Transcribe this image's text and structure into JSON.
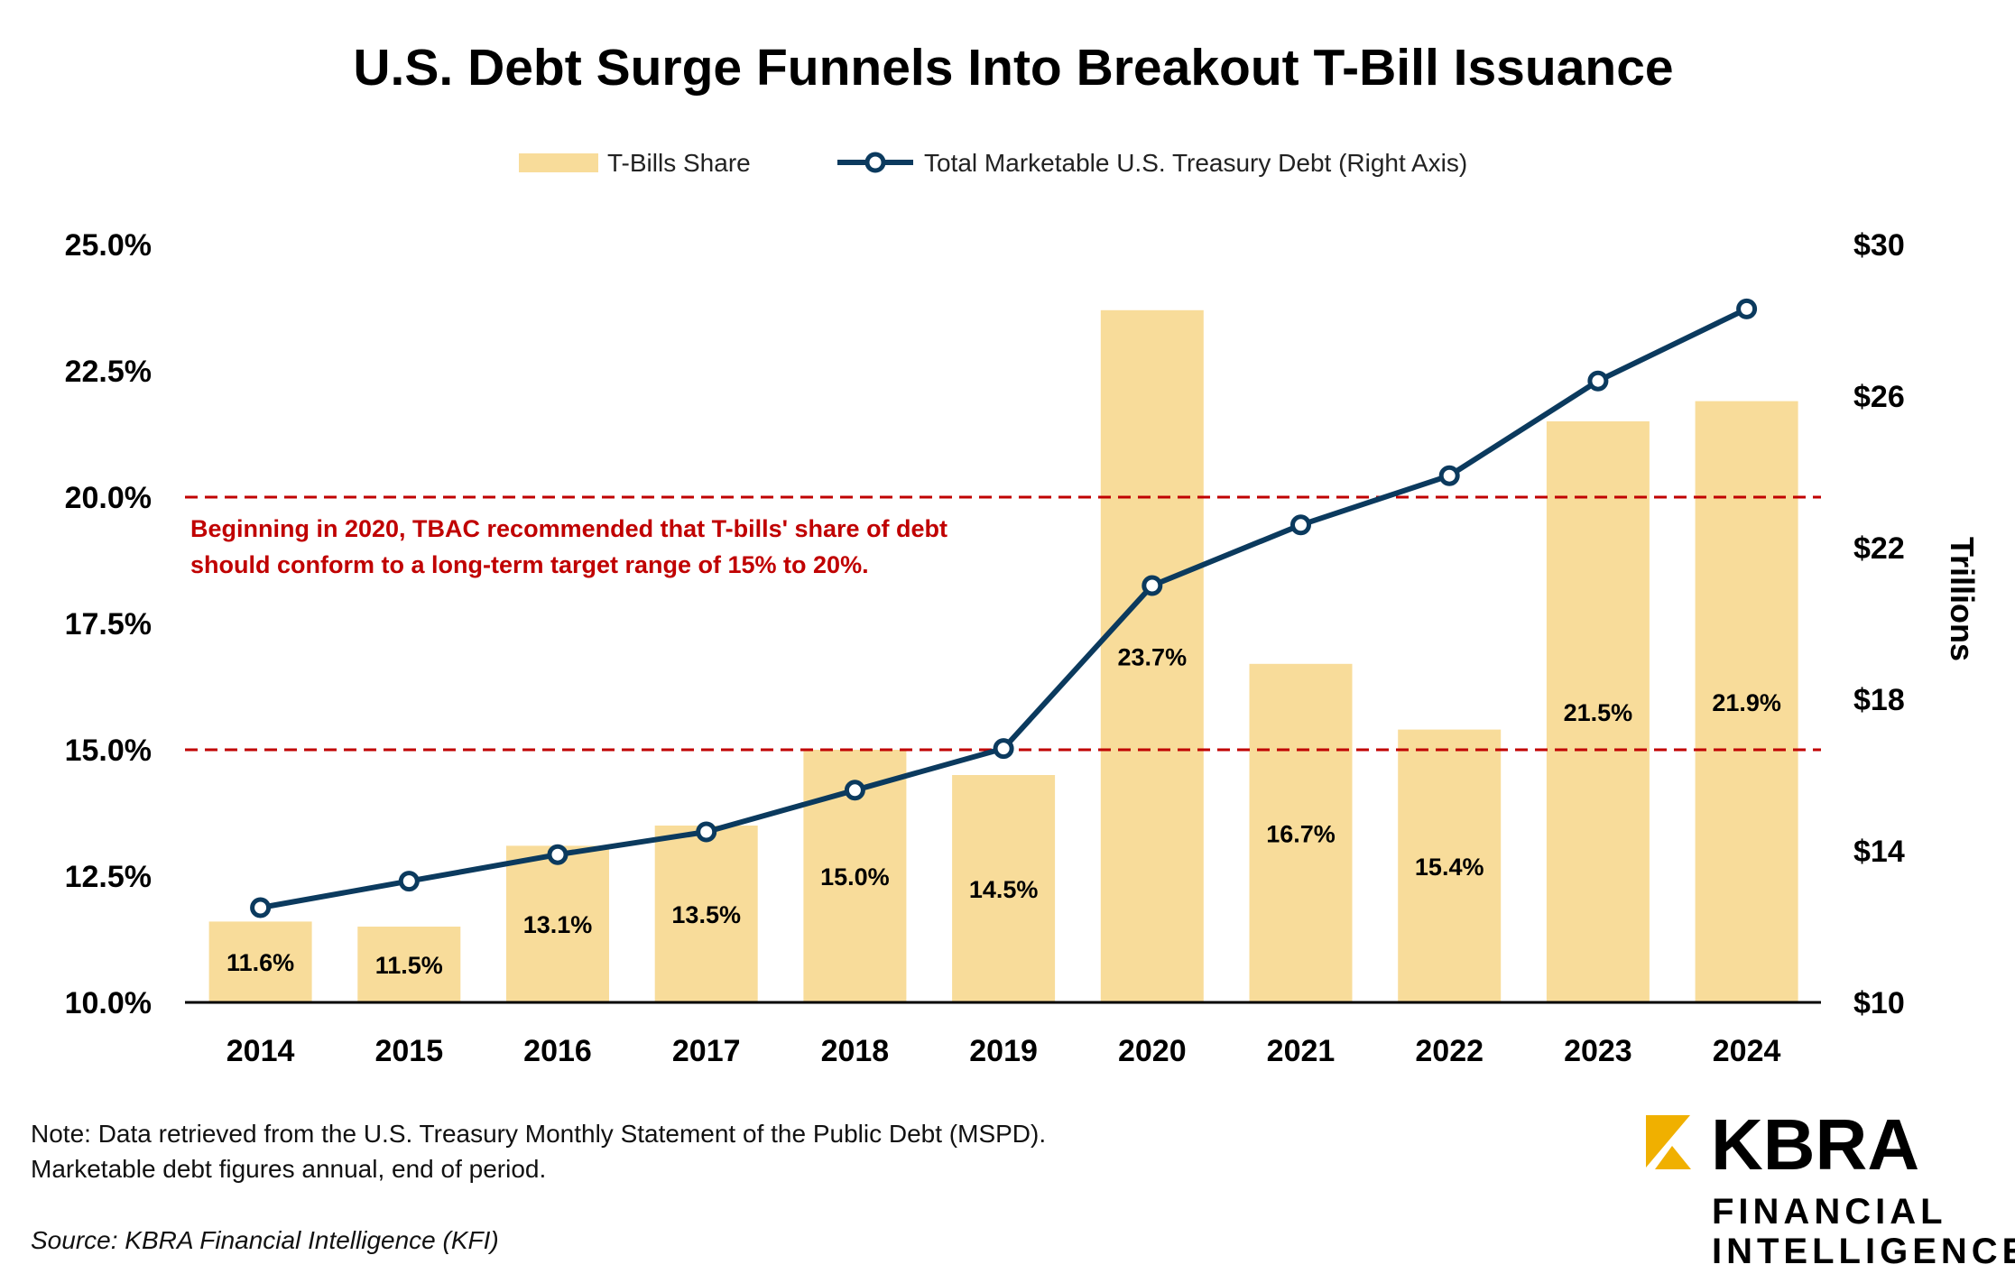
{
  "chart_data": {
    "type": "bar",
    "title": "U.S. Debt Surge Funnels Into Breakout T-Bill Issuance",
    "categories": [
      "2014",
      "2015",
      "2016",
      "2017",
      "2018",
      "2019",
      "2020",
      "2021",
      "2022",
      "2023",
      "2024"
    ],
    "series": [
      {
        "name": "T-Bills Share",
        "type": "bar",
        "axis": "left",
        "values": [
          11.6,
          11.5,
          13.1,
          13.5,
          15.0,
          14.5,
          23.7,
          16.7,
          15.4,
          21.5,
          21.9
        ],
        "labels": [
          "11.6%",
          "11.5%",
          "13.1%",
          "13.5%",
          "15.0%",
          "14.5%",
          "23.7%",
          "16.7%",
          "15.4%",
          "21.5%",
          "21.9%"
        ],
        "color": "#F8DC9A"
      },
      {
        "name": "Total Marketable U.S. Treasury Debt (Right Axis)",
        "type": "line",
        "axis": "right",
        "values": [
          12.5,
          13.2,
          13.9,
          14.5,
          15.6,
          16.7,
          21.0,
          22.6,
          23.9,
          26.4,
          28.3
        ],
        "color": "#0B3A5E"
      }
    ],
    "left_axis": {
      "ylim": [
        10,
        25
      ],
      "ticks": [
        10,
        12.5,
        15,
        17.5,
        20,
        22.5,
        25
      ],
      "tick_labels": [
        "10.0%",
        "12.5%",
        "15.0%",
        "17.5%",
        "20.0%",
        "22.5%",
        "25.0%"
      ],
      "label": ""
    },
    "right_axis": {
      "ylim": [
        10,
        30
      ],
      "ticks": [
        10,
        14,
        18,
        22,
        26,
        30
      ],
      "tick_labels": [
        "$10",
        "$14",
        "$18",
        "$22",
        "$26",
        "$30"
      ],
      "label": "Trillions"
    },
    "reference_lines": [
      {
        "value": 15,
        "axis": "left",
        "color": "#C00000"
      },
      {
        "value": 20,
        "axis": "left",
        "color": "#C00000"
      }
    ],
    "annotation": {
      "lines": [
        "Beginning in 2020, TBAC recommended that T-bills' share of debt",
        "should conform to a long-term target range of 15% to 20%."
      ],
      "color": "#C00000"
    },
    "legend": {
      "placement": "top-center"
    },
    "grid": false
  },
  "footer": {
    "note_lines": [
      "Note: Data retrieved from the U.S. Treasury Monthly Statement of the Public Debt (MSPD).",
      "Marketable debt figures annual, end of period."
    ],
    "source": "Source: KBRA Financial Intelligence (KFI)"
  },
  "logo": {
    "brand": "KBRA",
    "line1": "FINANCIAL",
    "line2": "INTELLIGENCE",
    "accent": "#F0B000"
  }
}
